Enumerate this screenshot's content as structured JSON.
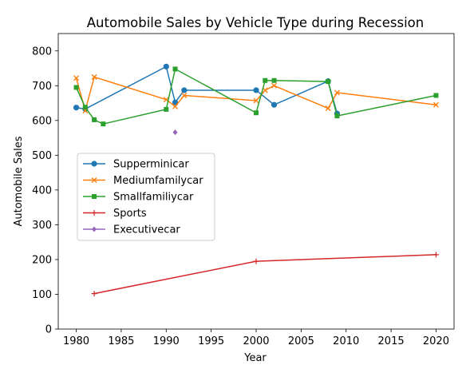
{
  "chart_data": {
    "type": "line",
    "title": "Automobile Sales by Vehicle Type during Recession",
    "xlabel": "Year",
    "ylabel": "Automobile Sales",
    "xlim": [
      1978,
      2022
    ],
    "ylim": [
      0,
      850
    ],
    "xticks": [
      1980,
      1985,
      1990,
      1995,
      2000,
      2005,
      2010,
      2015,
      2020
    ],
    "yticks": [
      0,
      100,
      200,
      300,
      400,
      500,
      600,
      700,
      800
    ],
    "grid": false,
    "legend_position": "center-left",
    "series": [
      {
        "name": "Supperminicar",
        "color": "#1f77b4",
        "marker": "circle",
        "points": [
          [
            1980,
            637
          ],
          [
            1981,
            633
          ],
          [
            1990,
            755
          ],
          [
            1991,
            652
          ],
          [
            1992,
            687
          ],
          [
            2000,
            687
          ],
          [
            2002,
            645
          ],
          [
            2008,
            713
          ],
          [
            2009,
            620
          ]
        ]
      },
      {
        "name": "Mediumfamilycar",
        "color": "#ff7f0e",
        "marker": "x",
        "points": [
          [
            1980,
            722
          ],
          [
            1981,
            628
          ],
          [
            1982,
            725
          ],
          [
            1990,
            660
          ],
          [
            1991,
            640
          ],
          [
            1992,
            672
          ],
          [
            2000,
            657
          ],
          [
            2001,
            687
          ],
          [
            2002,
            700
          ],
          [
            2008,
            635
          ],
          [
            2009,
            680
          ],
          [
            2020,
            645
          ]
        ]
      },
      {
        "name": "Smallfamiliycar",
        "color": "#2ca02c",
        "marker": "square",
        "points": [
          [
            1980,
            695
          ],
          [
            1981,
            638
          ],
          [
            1982,
            602
          ],
          [
            1983,
            590
          ],
          [
            1990,
            632
          ],
          [
            1991,
            748
          ],
          [
            2000,
            622
          ],
          [
            2001,
            715
          ],
          [
            2002,
            715
          ],
          [
            2008,
            712
          ],
          [
            2009,
            613
          ],
          [
            2020,
            672
          ]
        ]
      },
      {
        "name": "Sports",
        "color": "#d62728",
        "marker": "plus",
        "points": [
          [
            1982,
            102
          ],
          [
            2000,
            195
          ],
          [
            2020,
            214
          ]
        ]
      },
      {
        "name": "Executivecar",
        "color": "#9467bd",
        "marker": "diamond",
        "points": [
          [
            1991,
            566
          ]
        ]
      }
    ]
  }
}
